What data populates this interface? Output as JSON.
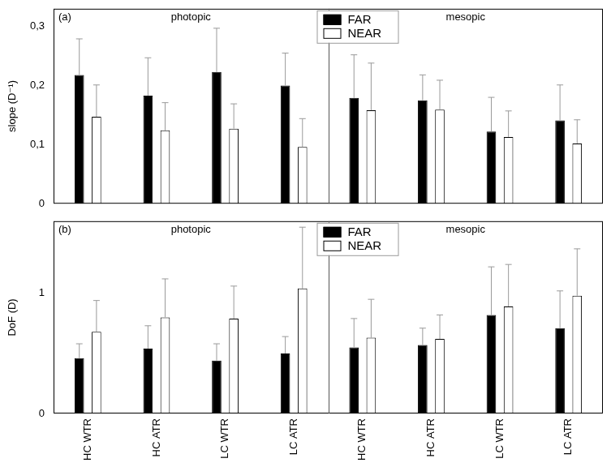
{
  "chart_data": [
    {
      "type": "bar",
      "panel_label": "(a)",
      "group_labels": [
        "photopic",
        "mesopic"
      ],
      "y_label": "slope (D⁻¹)",
      "categories": [
        "HC WTR",
        "HC ATR",
        "LC WTR",
        "LC ATR",
        "HC WTR",
        "HC ATR",
        "LC WTR",
        "LC ATR"
      ],
      "series": [
        {
          "name": "FAR",
          "color": "#000000",
          "values": [
            0.218,
            0.183,
            0.223,
            0.2,
            0.179,
            0.175,
            0.122,
            0.141
          ],
          "errors": [
            0.061,
            0.064,
            0.074,
            0.055,
            0.073,
            0.043,
            0.058,
            0.06
          ]
        },
        {
          "name": "NEAR",
          "color": "#ffffff",
          "values": [
            0.147,
            0.124,
            0.127,
            0.096,
            0.158,
            0.159,
            0.113,
            0.102
          ],
          "errors": [
            0.054,
            0.047,
            0.042,
            0.048,
            0.08,
            0.05,
            0.044,
            0.04
          ]
        }
      ],
      "ylim": [
        0,
        0.33
      ],
      "yticks": [
        0,
        {
          "value": 0.1,
          "label": "0,1"
        },
        {
          "value": 0.2,
          "label": "0,2"
        },
        {
          "value": 0.3,
          "label": "0,3"
        }
      ],
      "grid": false,
      "legend": "top",
      "tick_labels": "y"
    },
    {
      "type": "bar",
      "panel_label": "(b)",
      "group_labels": [
        "photopic",
        "mesopic"
      ],
      "y_label": "DoF (D)",
      "categories": [
        "HC WTR",
        "HC ATR",
        "LC WTR",
        "LC ATR",
        "HC WTR",
        "HC ATR",
        "LC WTR",
        "LC ATR"
      ],
      "series": [
        {
          "name": "FAR",
          "color": "#000000",
          "values": [
            0.46,
            0.54,
            0.44,
            0.5,
            0.55,
            0.57,
            0.82,
            0.71
          ],
          "errors": [
            0.12,
            0.19,
            0.14,
            0.14,
            0.24,
            0.14,
            0.4,
            0.31
          ]
        },
        {
          "name": "NEAR",
          "color": "#ffffff",
          "values": [
            0.68,
            0.8,
            0.79,
            1.04,
            0.63,
            0.62,
            0.89,
            0.98
          ],
          "errors": [
            0.26,
            0.32,
            0.27,
            0.51,
            0.32,
            0.2,
            0.35,
            0.39
          ]
        }
      ],
      "ylim": [
        0,
        1.6
      ],
      "yticks": [
        0,
        1
      ],
      "grid": false,
      "legend": "top"
    }
  ]
}
